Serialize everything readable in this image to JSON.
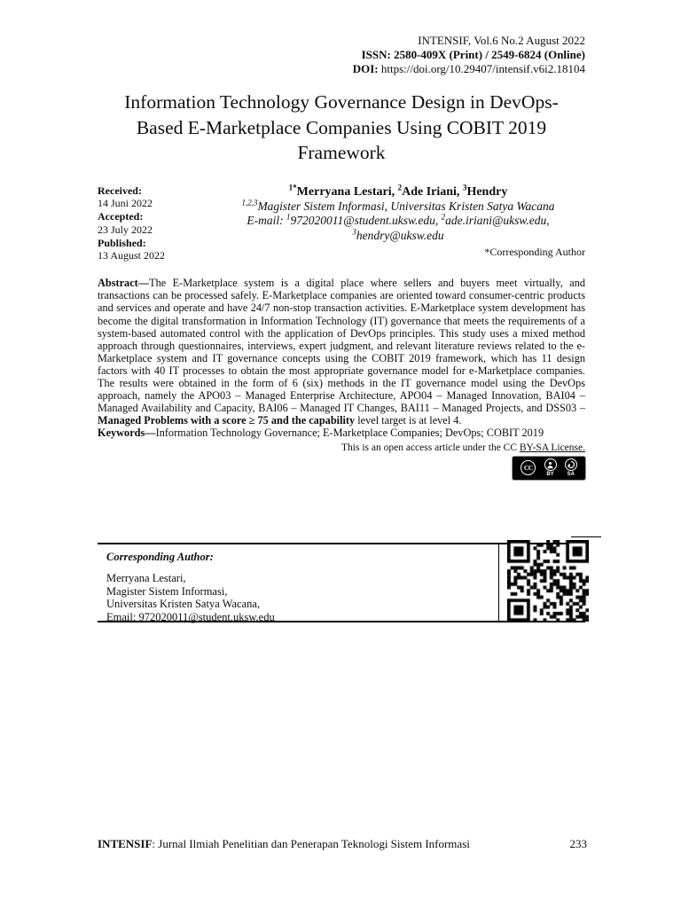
{
  "header": {
    "journal_line": "INTENSIF, Vol.6 No.2 August 2022",
    "issn_line": "ISSN: 2580-409X (Print) / 2549-6824 (Online)",
    "doi_label": "DOI:",
    "doi_value": "https://doi.org/10.29407/intensif.v6i2.18104"
  },
  "title": "Information Technology Governance Design in DevOps-Based E-Marketplace Companies Using COBIT 2019 Framework",
  "dates": {
    "received_label": "Received:",
    "received_value": "14 Juni 2022",
    "accepted_label": "Accepted:",
    "accepted_value": "23 July 2022",
    "published_label": "Published:",
    "published_value": "13 August 2022"
  },
  "authors": {
    "names": [
      {
        "sup": "1*",
        "text": "Merryana Lestari, "
      },
      {
        "sup": "2",
        "text": "Ade Iriani, "
      },
      {
        "sup": "3",
        "text": "Hendry"
      }
    ],
    "affiliation_sup": "1,2,3",
    "affiliation": "Magister Sistem Informasi, Universitas Kristen Satya Wacana",
    "email_label": "E-mail: ",
    "emails": [
      {
        "sup": "1",
        "text": "972020011@student.uksw.edu, "
      },
      {
        "sup": "2",
        "text": "ade.iriani@uksw.edu,"
      },
      {
        "sup": "3",
        "text": "hendry@uksw.edu"
      }
    ],
    "corresponding_note": "*Corresponding Author"
  },
  "abstract": {
    "label": "Abstract—",
    "text_1": "The E-Marketplace system is a digital place where sellers and buyers meet virtually, and transactions can be processed safely. E-Marketplace companies are oriented toward consumer-centric products and services and operate and have 24/7 non-stop transaction activities. E-Marketplace system development has become the digital transformation in Information Technology (IT) governance that meets the requirements of a system-based automated control with the application of DevOps principles. This study uses a mixed method approach through questionnaires, interviews, expert judgment, and relevant literature reviews related to the e-Marketplace system and IT governance concepts using the COBIT 2019 framework, which has 11 design factors with 40 IT processes to obtain the most appropriate governance model for e-Marketplace companies. The results were obtained in the form of 6 (six) methods in the IT governance model using the DevOps approach, namely the APO03 – Managed Enterprise Architecture, APO04 – Managed Innovation, BAI04 – Managed Availability and Capacity, BAI06 – Managed IT Changes, BAI11 – Managed Projects, and DSS03 – ",
    "text_bold": "Managed Problems with a score ≥ 75 and the capability ",
    "text_2": "level target is at level 4."
  },
  "keywords": {
    "label": "Keywords—",
    "text": "Information Technology Governance; E-Marketplace Companies; DevOps; COBIT 2019"
  },
  "license": {
    "prefix": "This is an open access article under the CC ",
    "link_text": "BY-SA License."
  },
  "cc_badge": {
    "cc": "CC",
    "by": "BY",
    "sa": "SA"
  },
  "corresponding_box": {
    "heading": "Corresponding Author:",
    "lines": [
      "Merryana Lestari,",
      "Magister Sistem Informasi,",
      "Universitas Kristen Satya Wacana,",
      "Email: 972020011@student.uksw.edu"
    ]
  },
  "footer": {
    "journal_name": "INTENSIF",
    "journal_rest": ": Jurnal Ilmiah Penelitian dan Penerapan Teknologi Sistem Informasi",
    "page_number": "233"
  }
}
